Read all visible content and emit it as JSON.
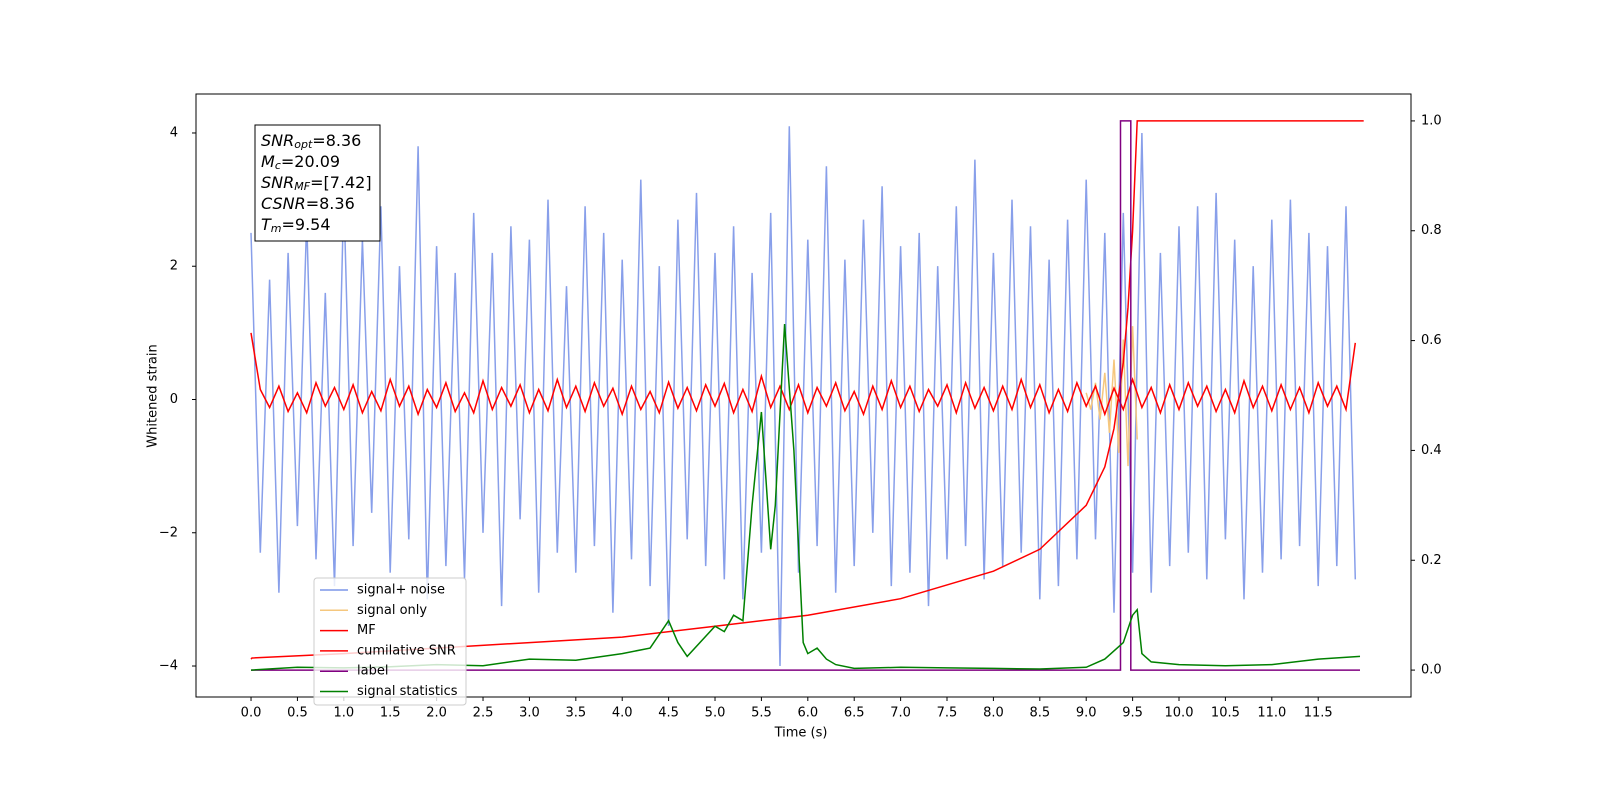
{
  "chart_data": {
    "type": "line",
    "xlabel": "Time (s)",
    "ylabel": "Whitened strain",
    "xlim": [
      -0.593,
      12.5
    ],
    "ylim": [
      -4.465,
      4.585
    ],
    "y2lim": [
      -0.049,
      1.049
    ],
    "xticks": [
      {
        "value": 0,
        "label": "0.0"
      },
      {
        "value": 0.5,
        "label": "0.5"
      },
      {
        "value": 1,
        "label": "1.0"
      },
      {
        "value": 1.5,
        "label": "1.5"
      },
      {
        "value": 2,
        "label": "2.0"
      },
      {
        "value": 2.5,
        "label": "2.5"
      },
      {
        "value": 3,
        "label": "3.0"
      },
      {
        "value": 3.5,
        "label": "3.5"
      },
      {
        "value": 4,
        "label": "4.0"
      },
      {
        "value": 4.5,
        "label": "4.5"
      },
      {
        "value": 5,
        "label": "5.0"
      },
      {
        "value": 5.5,
        "label": "5.5"
      },
      {
        "value": 6,
        "label": "6.0"
      },
      {
        "value": 6.5,
        "label": "6.5"
      },
      {
        "value": 7,
        "label": "7.0"
      },
      {
        "value": 7.5,
        "label": "7.5"
      },
      {
        "value": 8,
        "label": "8.0"
      },
      {
        "value": 8.5,
        "label": "8.5"
      },
      {
        "value": 9,
        "label": "9.0"
      },
      {
        "value": 9.5,
        "label": "9.5"
      },
      {
        "value": 10,
        "label": "10.0"
      },
      {
        "value": 10.5,
        "label": "10.5"
      },
      {
        "value": 11,
        "label": "11.0"
      },
      {
        "value": 11.5,
        "label": "11.5"
      }
    ],
    "yticks": [
      {
        "value": -4,
        "label": "−4"
      },
      {
        "value": -2,
        "label": "−2"
      },
      0,
      2,
      4
    ],
    "y2ticks": [
      {
        "value": 0,
        "label": "0.0"
      },
      {
        "value": 0.2,
        "label": "0.2"
      },
      {
        "value": 0.4,
        "label": "0.4"
      },
      {
        "value": 0.6,
        "label": "0.6"
      },
      {
        "value": 0.8,
        "label": "0.8"
      },
      {
        "value": 1,
        "label": "1.0"
      }
    ],
    "textbox": [
      {
        "var": "SNR",
        "sub": "opt",
        "text": "=8.36"
      },
      {
        "var": "M",
        "sub": "c",
        "text": "=20.09"
      },
      {
        "var": "SNR",
        "sub": "MF",
        "text": "=[7.42]"
      },
      {
        "var": "CSNR",
        "text": "=8.36"
      },
      {
        "var": "T",
        "sub": "m",
        "text": "=9.54"
      }
    ],
    "x": [
      0,
      0.1,
      0.2,
      0.3,
      0.4,
      0.5,
      0.6,
      0.7,
      0.8,
      0.9,
      1,
      1.1,
      1.2,
      1.3,
      1.4,
      1.5,
      1.6,
      1.7,
      1.8,
      1.9,
      2,
      2.1,
      2.2,
      2.3,
      2.4,
      2.5,
      2.6,
      2.7,
      2.8,
      2.9,
      3,
      3.1,
      3.2,
      3.3,
      3.4,
      3.5,
      3.6,
      3.7,
      3.8,
      3.9,
      4,
      4.1,
      4.2,
      4.3,
      4.4,
      4.5,
      4.6,
      4.7,
      4.8,
      4.9,
      5,
      5.1,
      5.2,
      5.3,
      5.4,
      5.5,
      5.6,
      5.7,
      5.8,
      5.9,
      6,
      6.1,
      6.2,
      6.3,
      6.4,
      6.5,
      6.6,
      6.7,
      6.8,
      6.9,
      7,
      7.1,
      7.2,
      7.3,
      7.4,
      7.5,
      7.6,
      7.7,
      7.8,
      7.9,
      8,
      8.1,
      8.2,
      8.3,
      8.4,
      8.5,
      8.6,
      8.7,
      8.8,
      8.9,
      9,
      9.1,
      9.2,
      9.3,
      9.4,
      9.5,
      9.6,
      9.7,
      9.8,
      9.9,
      10,
      10.1,
      10.2,
      10.3,
      10.4,
      10.5,
      10.6,
      10.7,
      10.8,
      10.9,
      11,
      11.1,
      11.2,
      11.3,
      11.4,
      11.5,
      11.6,
      11.7,
      11.8,
      11.9
    ],
    "series": [
      {
        "name": "signal+ noise",
        "color": "#7b95e8",
        "values": [
          2.5,
          -2.3,
          1.8,
          -2.9,
          2.2,
          -1.9,
          2.7,
          -2.4,
          1.6,
          -2.8,
          3.1,
          -2.2,
          2.4,
          -1.7,
          2.9,
          -2.6,
          2.0,
          -2.1,
          3.8,
          -3.0,
          2.3,
          -2.5,
          1.9,
          -2.7,
          2.8,
          -2.0,
          2.2,
          -3.1,
          2.6,
          -1.8,
          2.4,
          -2.9,
          3.0,
          -2.3,
          1.7,
          -2.6,
          2.9,
          -2.2,
          2.5,
          -3.2,
          2.1,
          -2.4,
          3.3,
          -2.8,
          2.0,
          -3.4,
          2.7,
          -2.1,
          3.1,
          -2.5,
          2.2,
          -2.7,
          2.6,
          -3.0,
          1.9,
          -2.3,
          2.8,
          -4.0,
          4.1,
          -2.6,
          2.4,
          -2.2,
          3.5,
          -2.9,
          2.1,
          -2.5,
          2.7,
          -2.0,
          3.2,
          -2.8,
          2.3,
          -2.6,
          2.5,
          -3.1,
          2.0,
          -2.4,
          2.9,
          -2.2,
          3.6,
          -2.7,
          2.2,
          -2.5,
          3.0,
          -2.3,
          2.6,
          -3.0,
          2.1,
          -2.8,
          2.7,
          -2.4,
          3.3,
          -2.1,
          2.5,
          -3.2,
          2.8,
          -2.6,
          4.0,
          -2.9,
          2.2,
          -2.5,
          2.6,
          -2.3,
          2.9,
          -2.7,
          3.1,
          -2.1,
          2.4,
          -3.0,
          2.0,
          -2.6,
          2.7,
          -2.4,
          3.0,
          -2.2,
          2.5,
          -2.8,
          2.3,
          -2.5,
          2.9,
          -2.7
        ]
      },
      {
        "name": "signal only",
        "color": "#f5c77e",
        "x": [
          9.0,
          9.05,
          9.1,
          9.15,
          9.2,
          9.25,
          9.3,
          9.35,
          9.4,
          9.45,
          9.5,
          9.55
        ],
        "values": [
          0.1,
          -0.15,
          0.25,
          -0.3,
          0.4,
          -0.5,
          0.6,
          -0.8,
          0.9,
          -1.0,
          1.1,
          -0.6
        ]
      },
      {
        "name": "MF",
        "color": "#ff0000",
        "values": [
          1.0,
          0.15,
          -0.12,
          0.2,
          -0.18,
          0.1,
          -0.2,
          0.25,
          -0.1,
          0.18,
          -0.15,
          0.22,
          -0.2,
          0.12,
          -0.17,
          0.3,
          -0.1,
          0.2,
          -0.22,
          0.15,
          -0.12,
          0.25,
          -0.18,
          0.1,
          -0.2,
          0.28,
          -0.15,
          0.18,
          -0.1,
          0.22,
          -0.2,
          0.15,
          -0.17,
          0.3,
          -0.12,
          0.2,
          -0.18,
          0.25,
          -0.1,
          0.17,
          -0.22,
          0.2,
          -0.15,
          0.12,
          -0.2,
          0.26,
          -0.13,
          0.18,
          -0.17,
          0.22,
          -0.1,
          0.24,
          -0.2,
          0.15,
          -0.18,
          0.35,
          -0.12,
          0.2,
          -0.15,
          0.22,
          -0.2,
          0.18,
          -0.1,
          0.25,
          -0.17,
          0.12,
          -0.22,
          0.2,
          -0.15,
          0.28,
          -0.12,
          0.2,
          -0.18,
          0.15,
          -0.1,
          0.22,
          -0.2,
          0.25,
          -0.13,
          0.18,
          -0.17,
          0.2,
          -0.15,
          0.3,
          -0.12,
          0.22,
          -0.2,
          0.15,
          -0.18,
          0.25,
          -0.1,
          0.2,
          -0.22,
          0.17,
          -0.15,
          0.3,
          -0.12,
          0.18,
          -0.2,
          0.22,
          -0.15,
          0.25,
          -0.1,
          0.2,
          -0.18,
          0.15,
          -0.2,
          0.28,
          -0.12,
          0.2,
          -0.17,
          0.22,
          -0.15,
          0.18,
          -0.2,
          0.25,
          -0.1,
          0.2,
          -0.15,
          0.85
        ]
      },
      {
        "name": "cumilative SNR",
        "color": "#ff0000",
        "axis": "y2",
        "x": [
          0,
          0.01,
          1,
          2,
          3,
          4,
          5,
          6,
          7,
          8,
          8.5,
          9,
          9.2,
          9.3,
          9.4,
          9.45,
          9.5,
          9.55,
          10,
          11,
          11.99
        ],
        "values": [
          0.02,
          0.022,
          0.03,
          0.04,
          0.05,
          0.06,
          0.08,
          0.1,
          0.13,
          0.18,
          0.22,
          0.3,
          0.37,
          0.44,
          0.56,
          0.66,
          0.8,
          1.0,
          1.0,
          1.0,
          1.0
        ]
      },
      {
        "name": "label",
        "color": "#800080",
        "axis": "y2",
        "x": [
          0,
          9.37,
          9.37,
          9.48,
          9.48,
          11.95
        ],
        "values": [
          0,
          0,
          1,
          1,
          0,
          0
        ]
      },
      {
        "name": "signal statistics",
        "color": "#008000",
        "axis": "y2",
        "x": [
          0,
          0.5,
          1,
          1.5,
          2,
          2.5,
          3,
          3.5,
          4,
          4.3,
          4.5,
          4.6,
          4.7,
          5,
          5.1,
          5.2,
          5.3,
          5.4,
          5.5,
          5.6,
          5.65,
          5.75,
          5.85,
          5.95,
          6,
          6.1,
          6.2,
          6.3,
          6.5,
          7,
          7.5,
          8,
          8.5,
          9,
          9.2,
          9.4,
          9.5,
          9.55,
          9.6,
          9.7,
          10,
          10.5,
          11,
          11.5,
          11.95
        ],
        "values": [
          0.0,
          0.005,
          0.004,
          0.006,
          0.01,
          0.008,
          0.02,
          0.018,
          0.03,
          0.04,
          0.09,
          0.05,
          0.025,
          0.08,
          0.07,
          0.1,
          0.09,
          0.3,
          0.47,
          0.22,
          0.3,
          0.63,
          0.4,
          0.05,
          0.03,
          0.04,
          0.02,
          0.01,
          0.003,
          0.005,
          0.004,
          0.003,
          0.002,
          0.005,
          0.02,
          0.05,
          0.1,
          0.11,
          0.03,
          0.015,
          0.01,
          0.008,
          0.01,
          0.02,
          0.025
        ]
      }
    ]
  }
}
